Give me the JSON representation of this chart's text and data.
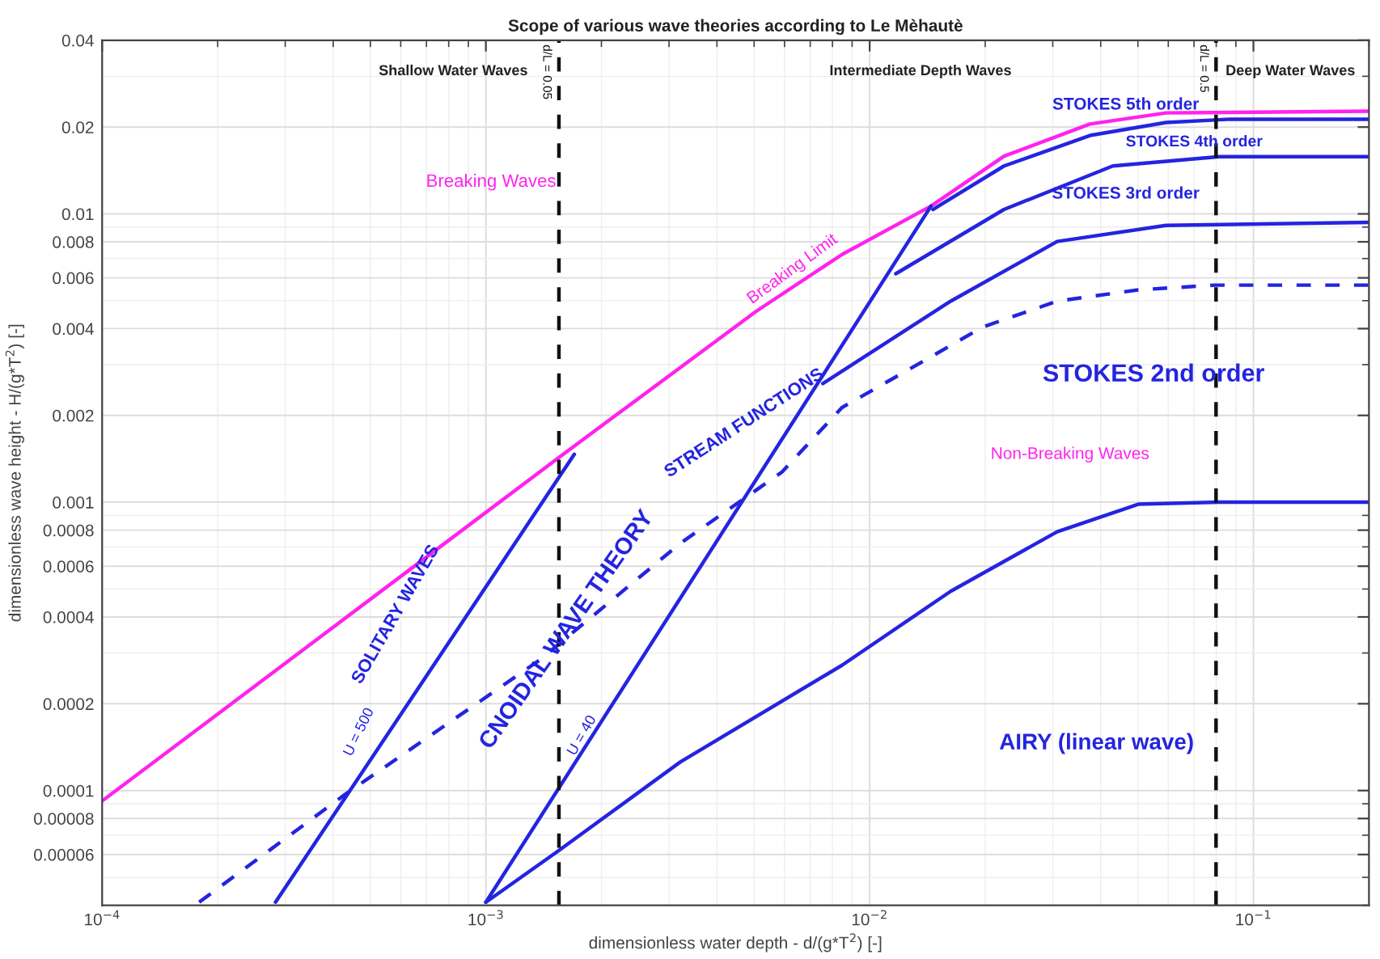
{
  "chart_data": {
    "type": "line",
    "title": "Scope of various wave theories according to Le Mèhautè",
    "xlabel": "dimensionless water depth - d/(g*T$^{2}$) [-]",
    "ylabel": "dimensionless wave height - H/(g*T$^{2}$) [-]",
    "log": "xy",
    "grid": true,
    "xlim": [
      0.0001,
      0.2
    ],
    "ylim": [
      4e-05,
      0.04
    ],
    "xticks": [
      {
        "value": 0.0001,
        "label": "10$^{−4}$"
      },
      {
        "value": 0.001,
        "label": "10$^{−3}$"
      },
      {
        "value": 0.01,
        "label": "10$^{−2}$"
      },
      {
        "value": 0.1,
        "label": "10$^{−1}$"
      }
    ],
    "yticks": [
      {
        "value": 6e-05,
        "label": "0.00006"
      },
      {
        "value": 8e-05,
        "label": "0.00008"
      },
      0.0001,
      0.0002,
      0.0004,
      0.0006,
      0.0008,
      0.001,
      0.002,
      0.004,
      0.006,
      0.008,
      0.01,
      0.02,
      0.04
    ],
    "series": [
      {
        "color": "#ff22ee",
        "line_style": "solid",
        "x": [
          0.0001,
          0.00155,
          0.00507,
          0.00847,
          0.01445,
          0.0224,
          0.0375,
          0.0592,
          0.2
        ],
        "values": [
          9.2e-05,
          0.00143,
          0.0046,
          0.00723,
          0.01064,
          0.01585,
          0.0205,
          0.0224,
          0.0227
        ]
      },
      {
        "color": "#2424e0",
        "line_style": "solid",
        "x": [
          0.01462,
          0.0224,
          0.0375,
          0.0592,
          0.0873,
          0.2
        ],
        "values": [
          0.01036,
          0.01466,
          0.0187,
          0.02075,
          0.0213,
          0.0213
        ]
      },
      {
        "color": "#2424e0",
        "line_style": "solid",
        "x": [
          0.0117,
          0.0224,
          0.043,
          0.0815,
          0.2
        ],
        "values": [
          0.0062,
          0.01036,
          0.01466,
          0.0158,
          0.0158
        ]
      },
      {
        "color": "#2424e0",
        "line_style": "solid",
        "x": [
          0.00755,
          0.01626,
          0.0308,
          0.0592,
          0.2
        ],
        "values": [
          0.00258,
          0.00498,
          0.00802,
          0.00912,
          0.00935
        ]
      },
      {
        "color": "#2424e0",
        "line_style": "dashed",
        "x": [
          0.000179,
          0.00043,
          0.001378,
          0.00321,
          0.00591,
          0.00847,
          0.0125,
          0.0197,
          0.0308,
          0.0501,
          0.0793,
          0.2
        ],
        "values": [
          4.1e-05,
          9.7e-05,
          0.000283,
          0.00072,
          0.001273,
          0.00213,
          0.00286,
          0.00405,
          0.00498,
          0.00545,
          0.00566,
          0.00566
        ]
      },
      {
        "color": "#2424e0",
        "line_style": "solid",
        "x": [
          0.001,
          0.00155,
          0.00321,
          0.00847,
          0.01626,
          0.0308,
          0.0501,
          0.0815,
          0.2
        ],
        "values": [
          4.1e-05,
          6.2e-05,
          0.0001256,
          0.000272,
          0.000491,
          0.00079,
          0.000984,
          0.001,
          0.001
        ]
      },
      {
        "color": "#2424e0",
        "line_style": "solid",
        "x": [
          0.000283,
          0.0017
        ],
        "values": [
          4.1e-05,
          0.001466
        ]
      },
      {
        "color": "#2424e0",
        "line_style": "solid",
        "x": [
          0.001,
          0.01445
        ],
        "values": [
          4.1e-05,
          0.01064
        ]
      }
    ],
    "ref_lines": [
      {
        "axis": "x",
        "value": 0.00155,
        "color": "#111111",
        "line_style": "dashed"
      },
      {
        "axis": "x",
        "value": 0.0799,
        "color": "#111111",
        "line_style": "dashed"
      }
    ],
    "annotations": [
      "Shallow Water Waves",
      "Intermediate Depth Waves",
      "Deep Water Waves",
      "Breaking Waves",
      "Breaking Limit",
      "Non-Breaking Waves",
      "STOKES 5th order",
      "STOKES 4th order",
      "STOKES 3rd order",
      "STOKES 2nd order",
      "STREAM FUNCTIONS",
      "CNOIDAL WAVE THEORY",
      "SOLITARY WAVES",
      "U = 500",
      "U = 40",
      "AIRY (linear wave)",
      "d/L = 0.05",
      "d/L = 0.5"
    ]
  }
}
